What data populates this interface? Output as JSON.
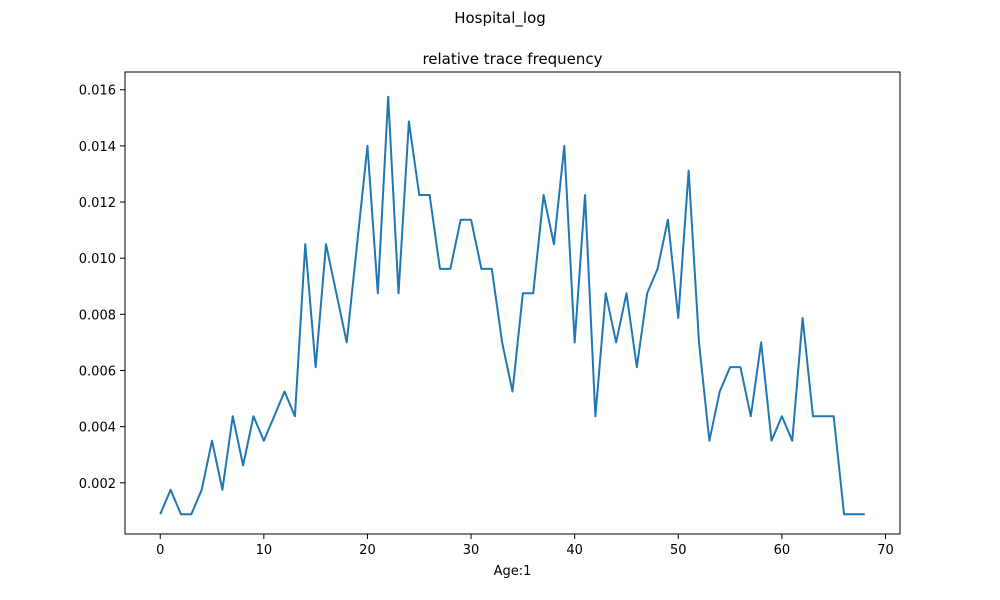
{
  "chart_data": {
    "type": "line",
    "suptitle": "Hospital_log",
    "title": "relative trace frequency",
    "xlabel": "Age:1",
    "ylabel": "",
    "xlim": [
      -3.4,
      71.4
    ],
    "ylim": [
      0.000176,
      0.016632
    ],
    "xticks": [
      0,
      10,
      20,
      30,
      40,
      50,
      60,
      70
    ],
    "yticks": [
      0.002,
      0.004,
      0.006,
      0.008,
      0.01,
      0.012,
      0.014,
      0.016
    ],
    "ytick_labels": [
      "0.002",
      "0.004",
      "0.006",
      "0.008",
      "0.010",
      "0.012",
      "0.014",
      "0.016"
    ],
    "grid": false,
    "line_color": "#1f77b4",
    "series": [
      {
        "x": [
          0,
          1,
          2,
          3,
          4,
          5,
          6,
          7,
          8,
          9,
          10,
          11,
          12,
          13,
          14,
          15,
          16,
          17,
          18,
          19,
          20,
          21,
          22,
          23,
          24,
          25,
          26,
          27,
          28,
          29,
          30,
          31,
          32,
          33,
          34,
          35,
          36,
          37,
          38,
          39,
          40,
          41,
          42,
          43,
          44,
          45,
          46,
          47,
          48,
          49,
          50,
          51,
          52,
          53,
          54,
          55,
          56,
          57,
          58,
          59,
          60,
          61,
          62,
          63,
          64,
          65,
          66,
          67,
          68
        ],
        "values": [
          0.00088,
          0.00175,
          0.00088,
          0.00088,
          0.00175,
          0.0035,
          0.00175,
          0.00437,
          0.00262,
          0.00437,
          0.0035,
          0.00437,
          0.00525,
          0.00437,
          0.0105,
          0.00612,
          0.0105,
          0.00875,
          0.007,
          0.0105,
          0.014,
          0.00875,
          0.01575,
          0.00875,
          0.01487,
          0.01225,
          0.01225,
          0.00962,
          0.00962,
          0.01137,
          0.01137,
          0.00962,
          0.00962,
          0.007,
          0.00525,
          0.00875,
          0.00875,
          0.01225,
          0.0105,
          0.014,
          0.007,
          0.01225,
          0.00437,
          0.00875,
          0.007,
          0.00875,
          0.00612,
          0.00875,
          0.00962,
          0.01137,
          0.00787,
          0.01312,
          0.007,
          0.0035,
          0.00525,
          0.00612,
          0.00612,
          0.00437,
          0.007,
          0.0035,
          0.00437,
          0.0035,
          0.00787,
          0.00437,
          0.00437,
          0.00437,
          0.00088,
          0.00088,
          0.00088
        ]
      }
    ]
  }
}
